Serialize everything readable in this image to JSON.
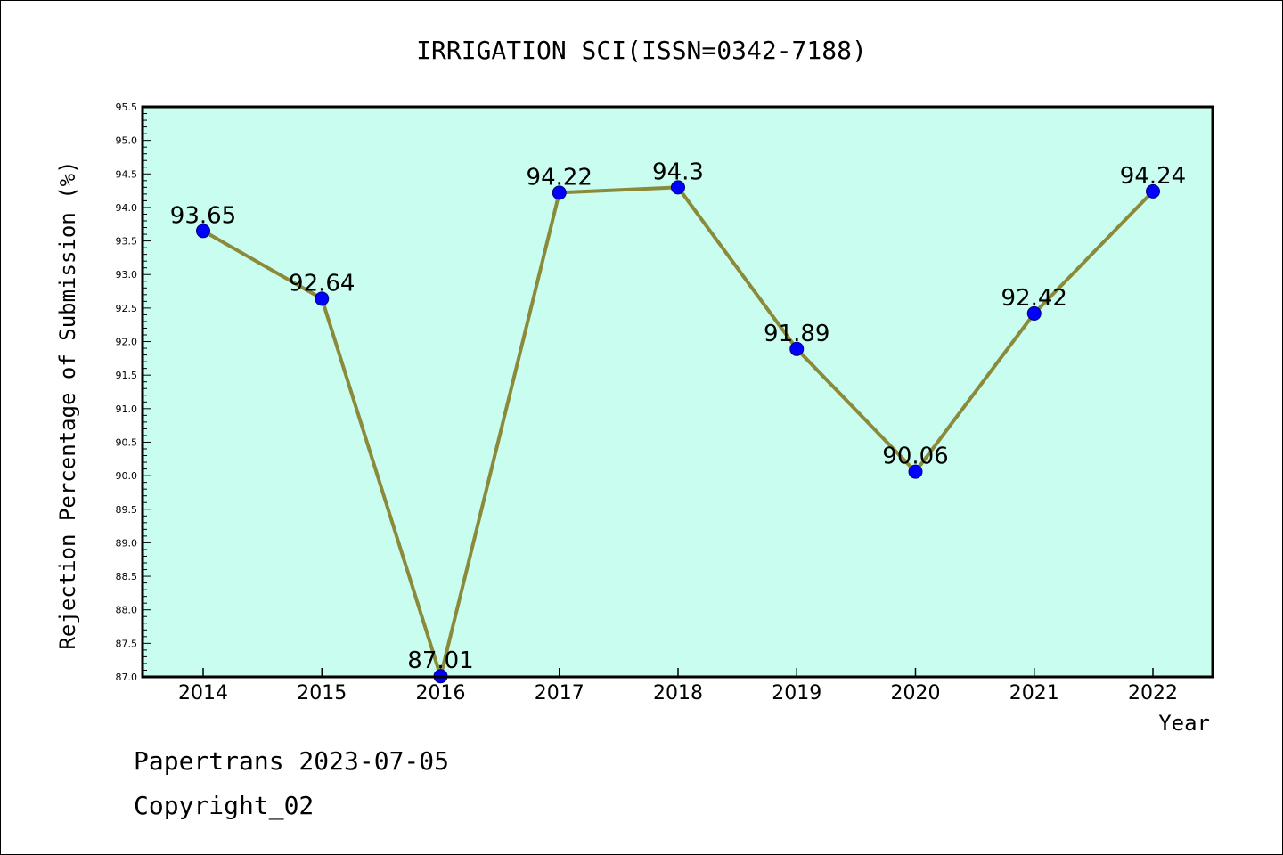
{
  "chart_data": {
    "type": "line",
    "title": "IRRIGATION SCI(ISSN=0342-7188)",
    "xlabel": "Year",
    "ylabel": "Rejection Percentage of Submission (%)",
    "categories": [
      "2014",
      "2015",
      "2016",
      "2017",
      "2018",
      "2019",
      "2020",
      "2021",
      "2022"
    ],
    "values": [
      93.65,
      92.64,
      87.01,
      94.22,
      94.3,
      91.89,
      90.06,
      92.42,
      94.24
    ],
    "data_labels": [
      "93.65",
      "92.64",
      "87.01",
      "94.22",
      "94.3",
      "91.89",
      "90.06",
      "92.42",
      "94.24"
    ],
    "ylim": [
      87.0,
      95.5
    ],
    "yticks": [
      "87.0",
      "87.5",
      "88.0",
      "88.5",
      "89.0",
      "89.5",
      "90.0",
      "90.5",
      "91.0",
      "91.5",
      "92.0",
      "92.5",
      "93.0",
      "93.5",
      "94.0",
      "94.5",
      "95.0",
      "95.5"
    ],
    "grid": false,
    "colors": {
      "plot_background": "#c8fdef",
      "line": "#8b8a3a",
      "marker": "#0000ff"
    }
  },
  "footer": {
    "line1": "Papertrans 2023-07-05",
    "line2": "Copyright_02"
  }
}
